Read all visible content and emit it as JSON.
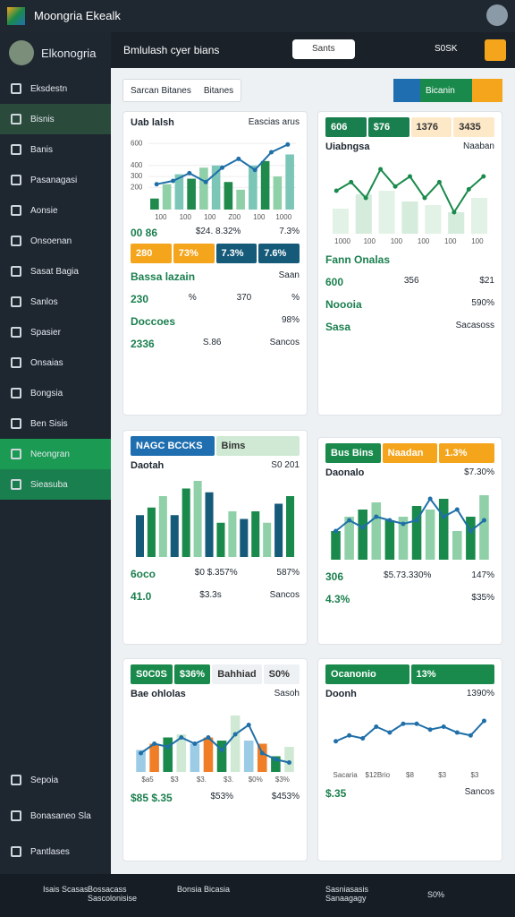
{
  "header": {
    "app_title": "Moongria Ekealk"
  },
  "topbar": {
    "brand": "Elkonogria",
    "title": "Bmlulash cyer bians",
    "search": "Sants",
    "badge": "S0SK"
  },
  "sidebar": {
    "items": [
      "Eksdestn",
      "Bisnis",
      "Banis",
      "Pasanagasi",
      "Aonsie",
      "Onsoenan",
      "Sasat Bagia",
      "Sanlos",
      "Spasier",
      "Onsaias",
      "Bongsia",
      "Ben Sisis",
      "Neongran",
      "Sieasuba"
    ],
    "footer": [
      "Sepoia",
      "Bonasaneo Sla",
      "Pantlases"
    ]
  },
  "toolbar": {
    "tabs": [
      "Sarcan Bitanes",
      "Bitanes"
    ],
    "button": "Bicanin"
  },
  "cards": [
    {
      "title": "Uab lalsh",
      "subtitle": "Eascias arus",
      "chart": {
        "ylim": [
          0,
          650
        ],
        "yticks": [
          600,
          400,
          300,
          200
        ],
        "xlabels": [
          "100",
          "100",
          "100",
          "Z00",
          "100",
          "1000"
        ],
        "bars": [
          100,
          230,
          320,
          280,
          380,
          400,
          250,
          180,
          400,
          440,
          300,
          500
        ],
        "bar_colors": [
          "#1f8a4c",
          "#8fd0a8",
          "#7cc6b8"
        ],
        "line": [
          230,
          260,
          330,
          250,
          380,
          460,
          360,
          520,
          590
        ],
        "line_color": "#1f6fa8"
      },
      "caption": [
        "00 86",
        "$24. 8.32%",
        "7.3%"
      ],
      "tiles": [
        {
          "text": "280",
          "color": "#f4a51c"
        },
        {
          "text": "73%",
          "color": "#f4a51c"
        },
        {
          "text": "7.3%",
          "color": "#165a7a"
        },
        {
          "text": "7.6%",
          "color": "#165a7a"
        }
      ],
      "rows": [
        [
          "Bassa lazain",
          "Saan"
        ],
        [
          "230",
          "%",
          "370",
          "%"
        ],
        [
          "Doccoes",
          "98%"
        ],
        [
          "2336",
          "S.86",
          "Sancos"
        ]
      ]
    },
    {
      "title": "Uiabngsa",
      "subtitle": "Naaban",
      "top_tiles": [
        {
          "text": "606",
          "color": "#1a7f4e"
        },
        {
          "text": "$76",
          "color": "#1a7f4e"
        },
        {
          "text": "1376",
          "color": "#fde9c8"
        },
        {
          "text": "3435",
          "color": "#fde9c8"
        }
      ],
      "chart": {
        "ylim": [
          0,
          100
        ],
        "xlabels": [
          "1000",
          "100",
          "100",
          "100",
          "100",
          "100"
        ],
        "bars": [
          35,
          55,
          60,
          45,
          40,
          30,
          50
        ],
        "bar_colors": [
          "#e3f2e6",
          "#d5ecdc"
        ],
        "line": [
          60,
          72,
          50,
          90,
          66,
          80,
          50,
          72,
          30,
          62,
          80
        ],
        "line_color": "#1a8a4c"
      },
      "rows": [
        [
          "Fann Onalas"
        ],
        [
          "600",
          "356",
          "$21"
        ],
        [
          "Noooia",
          "590%"
        ],
        [
          "Sasa",
          "Sacasoss"
        ]
      ]
    },
    {
      "title": "Daotah",
      "subtitle": "S0 201",
      "top_tiles": [
        {
          "text": "NAGC BCCKS",
          "color": "#1f6fb0"
        },
        {
          "text": "Bims",
          "color": "#cfe9d4"
        }
      ],
      "chart": {
        "ylim": [
          0,
          100
        ],
        "bars": [
          55,
          65,
          80,
          55,
          90,
          100,
          85,
          45,
          60,
          50,
          60,
          45,
          70,
          80
        ],
        "bar_colors": [
          "#165a7a",
          "#1a8a4c",
          "#8fd0a8"
        ]
      },
      "rows": [
        [
          "6oco",
          "$0 $.357%",
          "587%"
        ],
        [
          "41.0",
          "$3.3s",
          "Sancos"
        ]
      ]
    },
    {
      "title": "Daonalo",
      "subtitle": "$7.30%",
      "top_tiles": [
        {
          "text": "Bus Bins",
          "color": "#1a8a4c"
        },
        {
          "text": "Naadan",
          "color": "#f4a51c"
        },
        {
          "text": "1.3%",
          "color": "#f4a51c"
        }
      ],
      "chart": {
        "ylim": [
          0,
          100
        ],
        "bars": [
          40,
          60,
          70,
          80,
          55,
          60,
          75,
          70,
          85,
          40,
          60,
          90
        ],
        "bar_colors": [
          "#1a8a4c",
          "#8fd0a8"
        ],
        "line": [
          40,
          55,
          45,
          60,
          55,
          50,
          55,
          85,
          60,
          70,
          40,
          55
        ],
        "line_color": "#1f6fa8"
      },
      "rows": [
        [
          "306",
          "$5.73.330%",
          "147%"
        ],
        [
          "4.3%",
          "$35%"
        ]
      ]
    },
    {
      "title": "Bae ohlolas",
      "subtitle": "Sasoh",
      "top_tiles": [
        {
          "text": "S0C0S",
          "color": "#1a8a4c"
        },
        {
          "text": "$36%",
          "color": "#1a8a4c"
        },
        {
          "text": "Bahhiad",
          "color": "#eef1f4"
        },
        {
          "text": "S0%",
          "color": "#eef1f4"
        }
      ],
      "chart": {
        "ylim": [
          0,
          100
        ],
        "xlabels": [
          "$a5",
          "$3",
          "$3.",
          "$3.",
          "$0%",
          "$3%"
        ],
        "bars": [
          35,
          45,
          55,
          60,
          45,
          55,
          50,
          90,
          50,
          45,
          25,
          40
        ],
        "bar_colors": [
          "#9ccbe6",
          "#f07e26",
          "#1a8a4c",
          "#cfe9d4"
        ],
        "line": [
          30,
          45,
          40,
          55,
          45,
          55,
          35,
          60,
          75,
          30,
          20,
          15
        ],
        "line_color": "#1f6fa8"
      },
      "rows": [
        [
          "$85 $.35",
          "$53%",
          "$453%"
        ]
      ]
    },
    {
      "title": "Doonh",
      "subtitle": "1390%",
      "top_tiles": [
        {
          "text": "Ocanonio",
          "color": "#1a8a4c"
        },
        {
          "text": "13%",
          "color": "#1a8a4c"
        }
      ],
      "chart": {
        "ylim": [
          0,
          100
        ],
        "xlabels": [
          "Sacaria",
          "$12Brio",
          "$8",
          "$3",
          "$3"
        ],
        "line": [
          45,
          55,
          50,
          70,
          60,
          75,
          75,
          65,
          70,
          60,
          55,
          80
        ],
        "line_color": "#1f6fa8"
      },
      "rows": [
        [
          "$.35",
          "Sancos"
        ]
      ]
    }
  ],
  "bottombar": [
    "Isais Scasas",
    "Bossacass Sascolonisise",
    "Bonsia Bicasia",
    "Sasniasasis Sanaagagy",
    "S0%"
  ]
}
